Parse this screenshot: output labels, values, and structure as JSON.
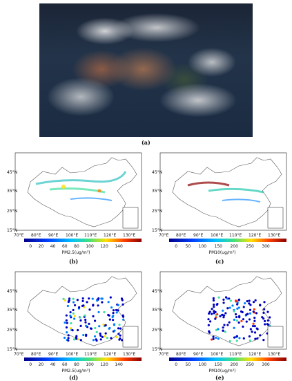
{
  "captions": {
    "a": "(a)",
    "b": "(b)",
    "c": "(c)",
    "d": "(d)",
    "e": "(e)"
  },
  "lat_ticks": [
    "15°N",
    "25°N",
    "35°N",
    "45°N"
  ],
  "lon_ticks": [
    "70°E",
    "80°E",
    "90°E",
    "100°E",
    "110°E",
    "120°E",
    "130°E"
  ],
  "colorbars": {
    "pm25": {
      "label": "PM2.5(ug/m³)",
      "ticks": [
        "0",
        "20",
        "40",
        "60",
        "80",
        "100",
        "120",
        "140"
      ]
    },
    "pm10": {
      "label": "PM10(ug/m³)",
      "ticks": [
        "0",
        "50",
        "100",
        "150",
        "200",
        "250",
        "300"
      ]
    }
  },
  "colors": {
    "low": "#00008b",
    "mid_low": "#0080ff",
    "mid": "#00e0c0",
    "mid_high": "#ffe000",
    "high": "#8b0000"
  }
}
